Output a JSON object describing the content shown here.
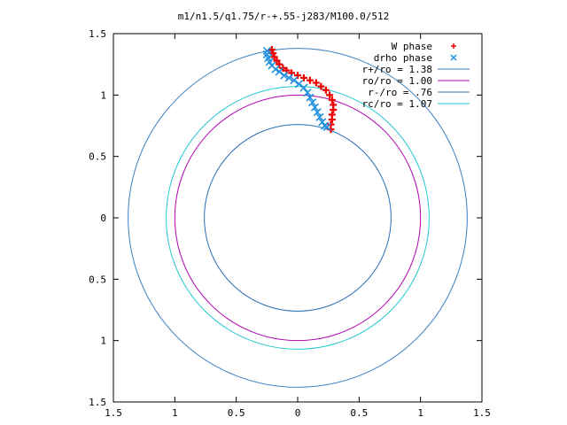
{
  "chart_data": {
    "type": "scatter",
    "title": "m1/n1.5/q1.75/r-+.55-j283/M100.0/512",
    "xlabel": "",
    "ylabel": "",
    "xlim": [
      -1.5,
      1.5
    ],
    "ylim": [
      -1.5,
      1.5
    ],
    "x_ticks": [
      {
        "value": -1.5,
        "label": "1.5"
      },
      {
        "value": -1.0,
        "label": "1"
      },
      {
        "value": -0.5,
        "label": "0.5"
      },
      {
        "value": 0,
        "label": "0"
      },
      {
        "value": 0.5,
        "label": "0.5"
      },
      {
        "value": 1.0,
        "label": "1"
      },
      {
        "value": 1.5,
        "label": "1.5"
      }
    ],
    "y_ticks": [
      {
        "value": 1.5,
        "label": "1.5"
      },
      {
        "value": 1.0,
        "label": "1"
      },
      {
        "value": 0.5,
        "label": "0.5"
      },
      {
        "value": 0,
        "label": "0"
      },
      {
        "value": -0.5,
        "label": "0.5"
      },
      {
        "value": -1.0,
        "label": "1"
      },
      {
        "value": -1.5,
        "label": "1.5"
      }
    ],
    "grid": false,
    "legend_position": "top-right",
    "circles": [
      {
        "name": "r+/ro = 1.38",
        "radius": 1.38,
        "color": "#3a7fc1"
      },
      {
        "name": "ro/ro = 1.00",
        "radius": 1.0,
        "color": "#b000b0"
      },
      {
        "name": "r-/ro = .76",
        "radius": 0.76,
        "color": "#2a6fb5"
      },
      {
        "name": "rc/ro = 1.07",
        "radius": 1.07,
        "color": "#22c8d0"
      }
    ],
    "series": [
      {
        "name": "W phase",
        "marker": "+",
        "color": "#ee0000",
        "points": [
          [
            -0.21,
            1.37
          ],
          [
            -0.2,
            1.34
          ],
          [
            -0.19,
            1.31
          ],
          [
            -0.17,
            1.28
          ],
          [
            -0.15,
            1.25
          ],
          [
            -0.12,
            1.22
          ],
          [
            -0.09,
            1.2
          ],
          [
            -0.05,
            1.18
          ],
          [
            0.0,
            1.16
          ],
          [
            0.05,
            1.14
          ],
          [
            0.1,
            1.12
          ],
          [
            0.15,
            1.1
          ],
          [
            0.19,
            1.07
          ],
          [
            0.23,
            1.04
          ],
          [
            0.26,
            1.0
          ],
          [
            0.28,
            0.96
          ],
          [
            0.29,
            0.92
          ],
          [
            0.29,
            0.88
          ],
          [
            0.28,
            0.84
          ],
          [
            0.28,
            0.8
          ],
          [
            0.27,
            0.76
          ],
          [
            0.27,
            0.72
          ]
        ]
      },
      {
        "name": "drho phase",
        "marker": "x",
        "color": "#1f8fe0",
        "points": [
          [
            -0.25,
            1.36
          ],
          [
            -0.25,
            1.33
          ],
          [
            -0.24,
            1.3
          ],
          [
            -0.23,
            1.27
          ],
          [
            -0.21,
            1.24
          ],
          [
            -0.18,
            1.21
          ],
          [
            -0.15,
            1.19
          ],
          [
            -0.11,
            1.16
          ],
          [
            -0.07,
            1.14
          ],
          [
            -0.03,
            1.12
          ],
          [
            0.01,
            1.09
          ],
          [
            0.05,
            1.06
          ],
          [
            0.08,
            1.02
          ],
          [
            0.1,
            0.98
          ],
          [
            0.12,
            0.94
          ],
          [
            0.14,
            0.9
          ],
          [
            0.16,
            0.86
          ],
          [
            0.18,
            0.82
          ],
          [
            0.2,
            0.78
          ],
          [
            0.22,
            0.75
          ],
          [
            0.24,
            0.74
          ]
        ]
      }
    ]
  }
}
